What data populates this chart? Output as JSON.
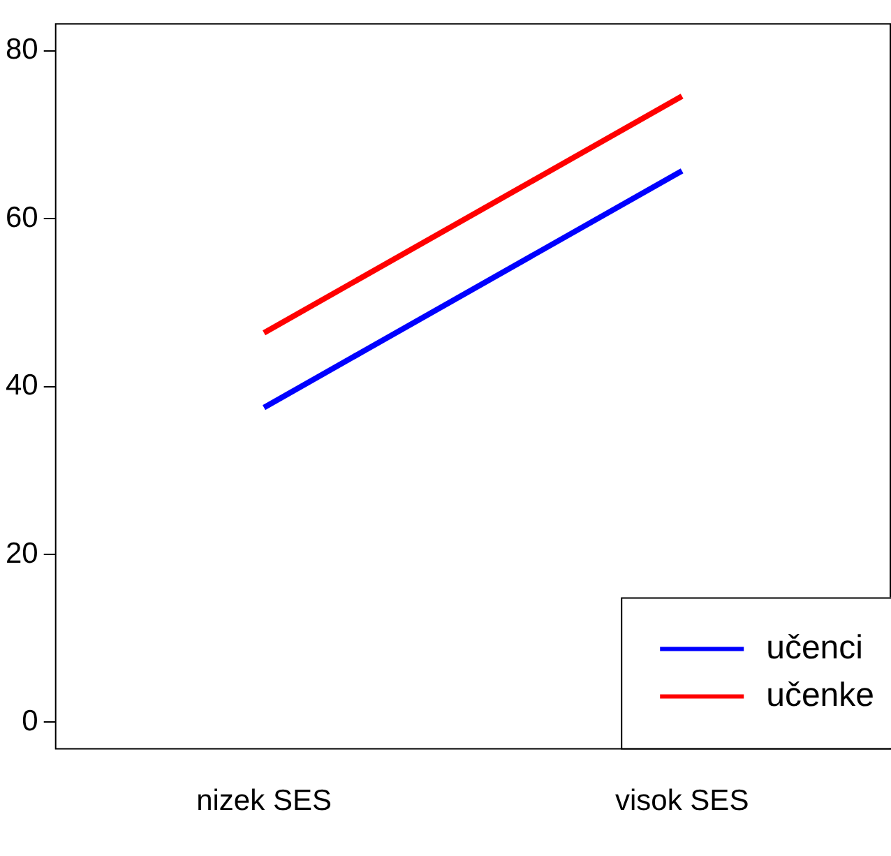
{
  "chart_data": {
    "type": "line",
    "categories": [
      "nizek SES",
      "visok SES"
    ],
    "series": [
      {
        "name": "učenci",
        "color": "#0000ff",
        "values": [
          37.5,
          65.7
        ]
      },
      {
        "name": "učenke",
        "color": "#ff0000",
        "values": [
          46.4,
          74.6
        ]
      }
    ],
    "ylim": [
      -3.1,
      83.3
    ],
    "yticks": [
      0,
      20,
      40,
      60,
      80
    ],
    "grid": false,
    "legend": "bottom right",
    "marker": "none",
    "line_style": "solid"
  }
}
